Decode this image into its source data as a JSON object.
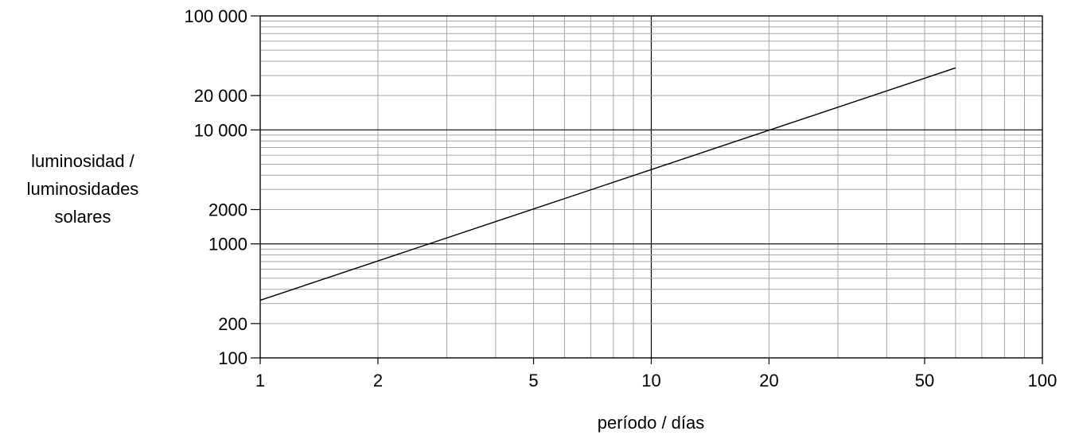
{
  "chart_data": {
    "type": "line",
    "title": "",
    "xlabel": "período / días",
    "ylabel_lines": [
      "luminosidad /",
      "luminosidades",
      "solares"
    ],
    "x_scale": "log",
    "y_scale": "log",
    "xlim": [
      1,
      100
    ],
    "ylim": [
      100,
      100000
    ],
    "x_ticks": [
      1,
      2,
      5,
      10,
      20,
      50,
      100
    ],
    "x_tick_labels": [
      "1",
      "2",
      "5",
      "10",
      "20",
      "50",
      "100"
    ],
    "y_ticks": [
      100,
      200,
      1000,
      2000,
      10000,
      20000,
      100000
    ],
    "y_tick_labels": [
      "100",
      "200",
      "1000",
      "2000",
      "10 000",
      "20 000",
      "100 000"
    ],
    "grid": true,
    "series": [
      {
        "x": [
          1,
          60
        ],
        "y": [
          320,
          35000
        ]
      }
    ],
    "colors": {
      "line": "#000000",
      "minor_grid": "#a6a6a6",
      "major_grid": "#000000"
    }
  }
}
